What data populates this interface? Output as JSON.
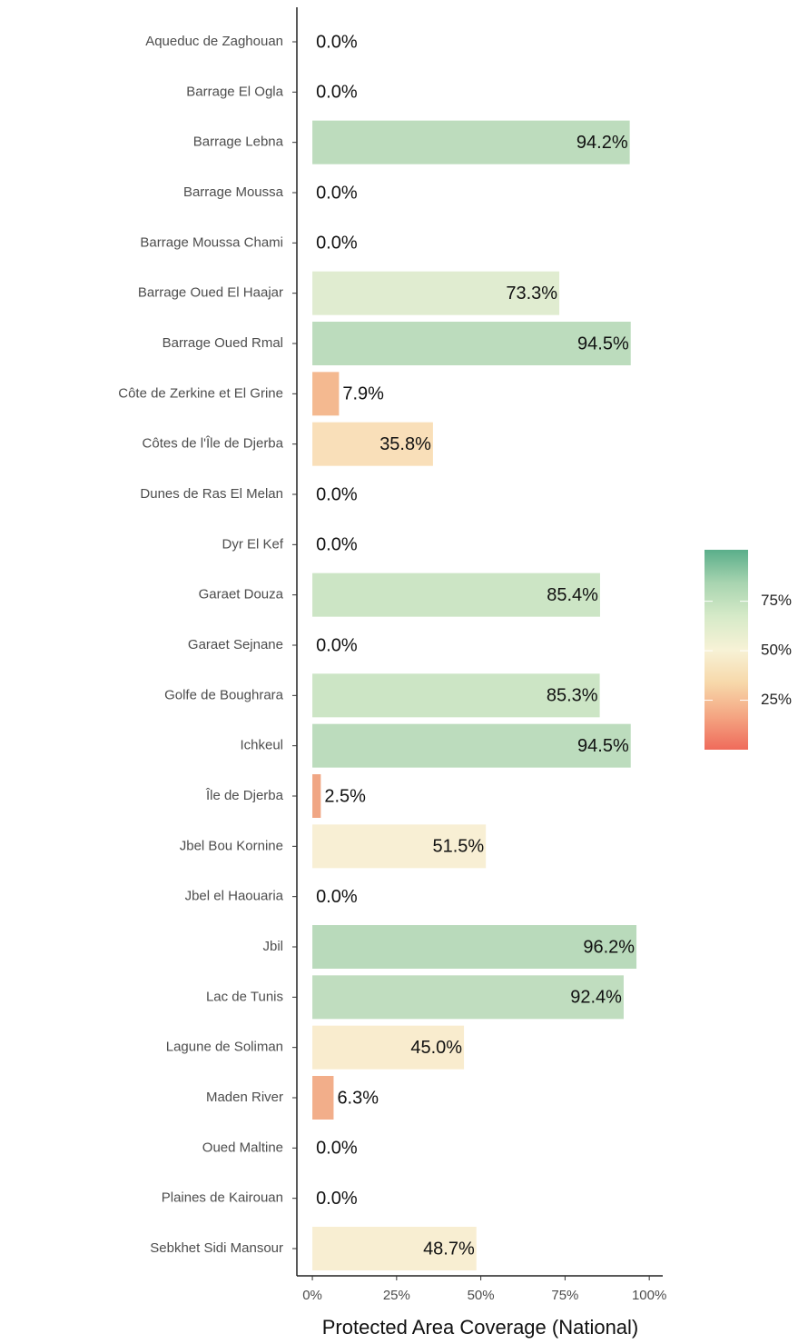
{
  "chart_data": {
    "type": "barh",
    "xlabel": "Protected Area Coverage (National)",
    "categories": [
      "Aqueduc de Zaghouan",
      "Barrage El Ogla",
      "Barrage Lebna",
      "Barrage Moussa",
      "Barrage Moussa Chami",
      "Barrage Oued El Haajar",
      "Barrage Oued Rmal",
      "Côte de Zerkine et El Grine",
      "Côtes de l'Île de Djerba",
      "Dunes de Ras El Melan",
      "Dyr El Kef",
      "Garaet Douza",
      "Garaet Sejnane",
      "Golfe de Boughrara",
      "Ichkeul",
      "Île de Djerba",
      "Jbel Bou Kornine",
      "Jbel el Haouaria",
      "Jbil",
      "Lac de Tunis",
      "Lagune de Soliman",
      "Maden River",
      "Oued Maltine",
      "Plaines de Kairouan",
      "Sebkhet Sidi Mansour"
    ],
    "values": [
      0,
      0,
      94.2,
      0,
      0,
      73.3,
      94.5,
      7.9,
      35.8,
      0,
      0,
      85.4,
      0,
      85.3,
      94.5,
      2.5,
      51.5,
      0,
      96.2,
      92.4,
      45.0,
      6.3,
      0,
      0,
      48.7
    ],
    "value_labels": [
      "0.0%",
      "0.0%",
      "94.2%",
      "0.0%",
      "0.0%",
      "73.3%",
      "94.5%",
      "7.9%",
      "35.8%",
      "0.0%",
      "0.0%",
      "85.4%",
      "0.0%",
      "85.3%",
      "94.5%",
      "2.5%",
      "51.5%",
      "0.0%",
      "96.2%",
      "92.4%",
      "45.0%",
      "6.3%",
      "0.0%",
      "0.0%",
      "48.7%"
    ],
    "colors": [
      "#f4b990",
      "#f4b990",
      "#bddcbd",
      "#f4b990",
      "#f4b990",
      "#e0ecd0",
      "#bcdcbd",
      "#f4b990",
      "#f9dfb9",
      "#f4b990",
      "#f4b990",
      "#cce5c5",
      "#f4b990",
      "#cce5c5",
      "#bcdcbd",
      "#f0a684",
      "#f8efd4",
      "#f4b990",
      "#b9dabb",
      "#c0ddbf",
      "#f9ecce",
      "#f2ae8a",
      "#f4b990",
      "#f4b990",
      "#f8eed2"
    ],
    "xlim": [
      -4.6,
      104
    ],
    "xticks": [
      {
        "value": 0,
        "label": "0%"
      },
      {
        "value": 25,
        "label": "25%"
      },
      {
        "value": 50,
        "label": "50%"
      },
      {
        "value": 75,
        "label": "75%"
      },
      {
        "value": 100,
        "label": "100%"
      }
    ],
    "colorbar": {
      "lim": [
        0,
        101
      ],
      "colors": [
        "#ef6b5b",
        "#f4a582",
        "#f7d8aa",
        "#f7f2d6",
        "#d6eac8",
        "#a8d4b0",
        "#5aae8a"
      ],
      "ticks": [
        {
          "value": 25,
          "label": "25%"
        },
        {
          "value": 50,
          "label": "50%"
        },
        {
          "value": 75,
          "label": "75%"
        }
      ]
    }
  }
}
